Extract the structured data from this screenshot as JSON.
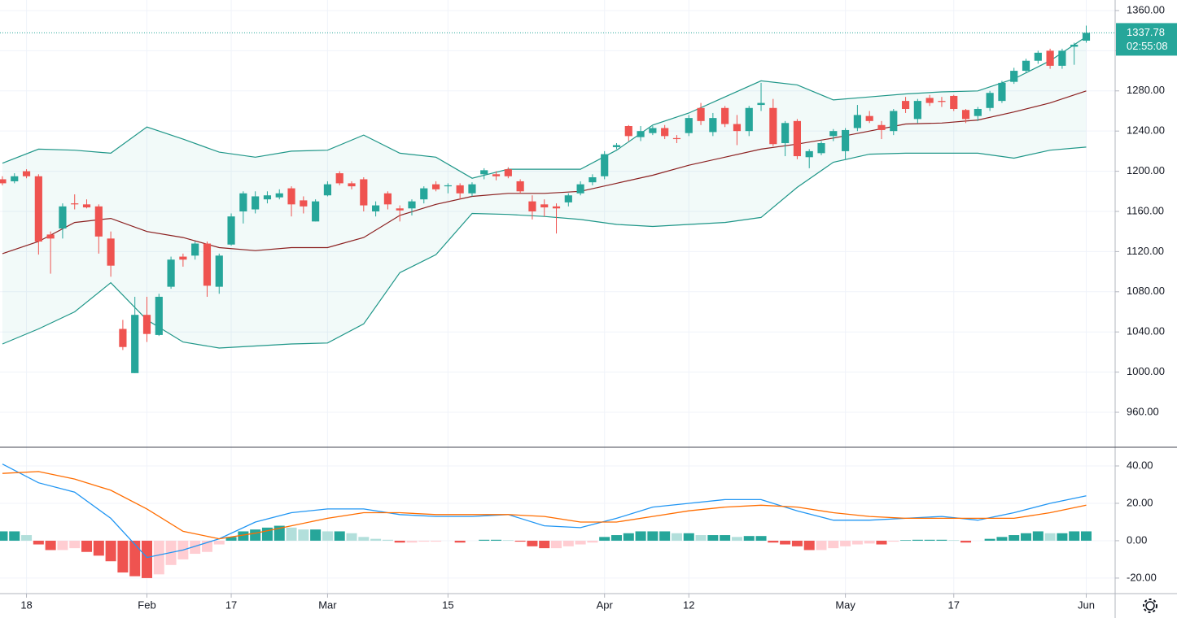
{
  "chart_data": [
    {
      "type": "candlestick",
      "xlim": [
        -0.2,
        92.4
      ],
      "ylim": [
        925.2,
        1370.5
      ],
      "yticks": [
        {
          "value": 960,
          "label": "960.00"
        },
        {
          "value": 1000,
          "label": "1000.00"
        },
        {
          "value": 1040,
          "label": "1040.00"
        },
        {
          "value": 1080,
          "label": "1080.00"
        },
        {
          "value": 1120,
          "label": "1120.00"
        },
        {
          "value": 1160,
          "label": "1160.00"
        },
        {
          "value": 1200,
          "label": "1200.00"
        },
        {
          "value": 1240,
          "label": "1240.00"
        },
        {
          "value": 1280,
          "label": "1280.00"
        },
        {
          "value": 1320,
          "label": "1320.00"
        },
        {
          "value": 1360,
          "label": "1360.00"
        }
      ],
      "xticks": [
        {
          "value": 2,
          "label": "18"
        },
        {
          "value": 12,
          "label": "Feb"
        },
        {
          "value": 19,
          "label": "17"
        },
        {
          "value": 27,
          "label": "Mar"
        },
        {
          "value": 37,
          "label": "15"
        },
        {
          "value": 50,
          "label": "Apr"
        },
        {
          "value": 57,
          "label": "12"
        },
        {
          "value": 70,
          "label": "May"
        },
        {
          "value": 79,
          "label": "17"
        },
        {
          "value": 90,
          "label": "Jun"
        }
      ],
      "grid": true,
      "up_color": "#26a69a",
      "down_color": "#ef5350",
      "countdown": "02:55:08",
      "open": [
        1192,
        1190,
        1200,
        1195,
        1137,
        1143,
        1168,
        1167,
        1165,
        1133,
        1043,
        999,
        1057,
        1037,
        1085,
        1115,
        1116,
        1128,
        1085,
        1127,
        1160,
        1162,
        1172,
        1174,
        1183,
        1171,
        1150,
        1176,
        1198,
        1188,
        1192,
        1160,
        1178,
        1163,
        1163,
        1172,
        1187,
        1185,
        1186,
        1178,
        1197,
        1197,
        1202,
        1190,
        1170,
        1167,
        1165,
        1169,
        1178,
        1189,
        1195,
        1224,
        1245,
        1234,
        1238,
        1243,
        1233,
        1238,
        1263,
        1239,
        1263,
        1247,
        1240,
        1266,
        1263,
        1228,
        1250,
        1214,
        1218,
        1235,
        1220,
        1243,
        1255,
        1246,
        1240,
        1270,
        1252,
        1273,
        1270,
        1275,
        1261,
        1255,
        1263,
        1270,
        1289,
        1300,
        1310,
        1320,
        1305,
        1324,
        1330
      ],
      "high": [
        1195,
        1198,
        1202,
        1197,
        1140,
        1168,
        1177,
        1172,
        1167,
        1140,
        1052,
        1075,
        1075,
        1078,
        1115,
        1118,
        1130,
        1130,
        1118,
        1158,
        1180,
        1180,
        1180,
        1182,
        1185,
        1175,
        1172,
        1190,
        1200,
        1190,
        1194,
        1170,
        1180,
        1166,
        1172,
        1185,
        1190,
        1188,
        1188,
        1189,
        1203,
        1200,
        1204,
        1192,
        1176,
        1172,
        1168,
        1178,
        1190,
        1197,
        1220,
        1228,
        1246,
        1245,
        1245,
        1246,
        1236,
        1256,
        1268,
        1258,
        1265,
        1256,
        1265,
        1288,
        1272,
        1250,
        1252,
        1222,
        1230,
        1242,
        1243,
        1266,
        1260,
        1250,
        1262,
        1274,
        1272,
        1276,
        1274,
        1276,
        1262,
        1264,
        1280,
        1290,
        1303,
        1312,
        1320,
        1322,
        1322,
        1328,
        1345
      ],
      "low": [
        1186,
        1188,
        1193,
        1117,
        1098,
        1133,
        1162,
        1163,
        1118,
        1095,
        1022,
        999,
        1030,
        1036,
        1083,
        1105,
        1112,
        1075,
        1078,
        1126,
        1148,
        1158,
        1168,
        1172,
        1155,
        1158,
        1150,
        1175,
        1186,
        1182,
        1160,
        1155,
        1162,
        1150,
        1156,
        1168,
        1180,
        1178,
        1172,
        1175,
        1192,
        1191,
        1193,
        1178,
        1152,
        1155,
        1138,
        1165,
        1176,
        1186,
        1192,
        1222,
        1230,
        1230,
        1236,
        1232,
        1228,
        1235,
        1246,
        1235,
        1244,
        1226,
        1235,
        1260,
        1225,
        1215,
        1212,
        1203,
        1216,
        1230,
        1212,
        1240,
        1248,
        1232,
        1236,
        1258,
        1248,
        1265,
        1264,
        1260,
        1248,
        1250,
        1260,
        1268,
        1287,
        1298,
        1307,
        1302,
        1302,
        1306,
        1328
      ],
      "close": [
        1188,
        1195,
        1195,
        1130,
        1133,
        1165,
        1167,
        1164,
        1135,
        1106,
        1025,
        1057,
        1038,
        1075,
        1112,
        1112,
        1128,
        1086,
        1116,
        1155,
        1178,
        1175,
        1176,
        1178,
        1167,
        1165,
        1170,
        1187,
        1188,
        1185,
        1166,
        1166,
        1167,
        1161,
        1170,
        1183,
        1182,
        1186,
        1178,
        1187,
        1201,
        1195,
        1195,
        1180,
        1160,
        1164,
        1163,
        1176,
        1187,
        1194,
        1217,
        1226,
        1235,
        1240,
        1243,
        1235,
        1232,
        1253,
        1250,
        1253,
        1247,
        1240,
        1263,
        1268,
        1227,
        1248,
        1215,
        1220,
        1228,
        1240,
        1241,
        1256,
        1250,
        1241,
        1260,
        1262,
        1270,
        1268,
        1269,
        1262,
        1252,
        1262,
        1278,
        1288,
        1300,
        1310,
        1318,
        1305,
        1320,
        1326,
        1337.78
      ],
      "bands": {
        "fill": "rgba(38,166,154,0.06)",
        "x": [
          0,
          3,
          6,
          9,
          12,
          15,
          18,
          21,
          24,
          27,
          30,
          33,
          36,
          39,
          42,
          45,
          48,
          51,
          54,
          57,
          60,
          63,
          66,
          69,
          72,
          75,
          78,
          81,
          84,
          87,
          90
        ],
        "series": [
          {
            "color": "#1e9688",
            "values": [
              1208,
              1222,
              1221,
              1218,
              1244,
              1232,
              1219,
              1214,
              1220,
              1221,
              1236,
              1218,
              1214,
              1193,
              1202,
              1202,
              1202,
              1221,
              1246,
              1258,
              1274,
              1290,
              1286,
              1271,
              1274,
              1277,
              1279,
              1280,
              1292,
              1310,
              1334
            ]
          },
          {
            "color": "#8b1f1f",
            "values": [
              1118,
              1130,
              1149,
              1153,
              1140,
              1134,
              1124,
              1121,
              1124,
              1124,
              1134,
              1156,
              1167,
              1175,
              1178,
              1178,
              1180,
              1188,
              1196,
              1206,
              1214,
              1222,
              1227,
              1233,
              1240,
              1247,
              1248,
              1251,
              1259,
              1268,
              1280
            ]
          },
          {
            "color": "#1e9688",
            "values": [
              1028,
              1043,
              1060,
              1089,
              1052,
              1030,
              1024,
              1026,
              1028,
              1029,
              1048,
              1099,
              1117,
              1158,
              1157,
              1155,
              1152,
              1147,
              1145,
              1147,
              1149,
              1154,
              1184,
              1209,
              1217,
              1218,
              1218,
              1218,
              1213,
              1221,
              1224
            ]
          }
        ]
      }
    },
    {
      "type": "macd",
      "xlim": [
        -0.2,
        92.4
      ],
      "ylim": [
        -28.3,
        50
      ],
      "yticks": [
        {
          "value": -20,
          "label": "-20.00"
        },
        {
          "value": 0,
          "label": "0.00"
        },
        {
          "value": 20,
          "label": "20.00"
        },
        {
          "value": 40,
          "label": "40.00"
        }
      ],
      "grid": true,
      "histogram_colors": [
        "#26a69a",
        "#b2dfdb",
        "#ffcdd2",
        "#ef5350"
      ],
      "histogram": [
        5,
        5,
        3,
        -2,
        -5,
        -5,
        -4,
        -6,
        -8,
        -11,
        -17,
        -19,
        -20,
        -18,
        -13,
        -10,
        -7,
        -6,
        -2,
        2,
        5,
        6,
        7,
        8,
        7,
        6,
        6,
        5,
        5,
        4,
        2,
        1,
        0.5,
        -1,
        -1,
        -0.5,
        -0.5,
        0,
        -1,
        0,
        0.5,
        0.5,
        0.3,
        -0.5,
        -3,
        -4,
        -4,
        -3,
        -2,
        -1,
        2,
        3,
        4,
        5,
        5,
        5,
        4,
        4,
        3,
        3,
        3,
        2,
        2.5,
        2.5,
        -1,
        -2,
        -3,
        -5,
        -5,
        -4,
        -3,
        -2,
        -1.5,
        -2,
        -0.5,
        0.3,
        0.5,
        0.5,
        0.5,
        0.3,
        -1,
        0,
        1,
        2,
        3,
        4,
        5,
        4,
        4,
        5,
        5
      ],
      "x": [
        0,
        3,
        6,
        9,
        12,
        15,
        18,
        21,
        24,
        27,
        30,
        33,
        36,
        39,
        42,
        45,
        48,
        51,
        54,
        57,
        60,
        63,
        66,
        69,
        72,
        75,
        78,
        81,
        84,
        87,
        90
      ],
      "series": [
        {
          "color": "#2196f3",
          "values": [
            41,
            31,
            26,
            12,
            -9,
            -5,
            1,
            10,
            15,
            17,
            17,
            14,
            13,
            13,
            14,
            8,
            7,
            12,
            18,
            20,
            22,
            22,
            16,
            11,
            11,
            12,
            13,
            11,
            15,
            20,
            24
          ]
        },
        {
          "color": "#ff6d00",
          "values": [
            36,
            37,
            33,
            27,
            17,
            5,
            1,
            4,
            8,
            12,
            15,
            15,
            14,
            14,
            14,
            13,
            10,
            10,
            13,
            16,
            18,
            19,
            18,
            15,
            13,
            12,
            12,
            12,
            12,
            15,
            19
          ]
        }
      ]
    }
  ]
}
